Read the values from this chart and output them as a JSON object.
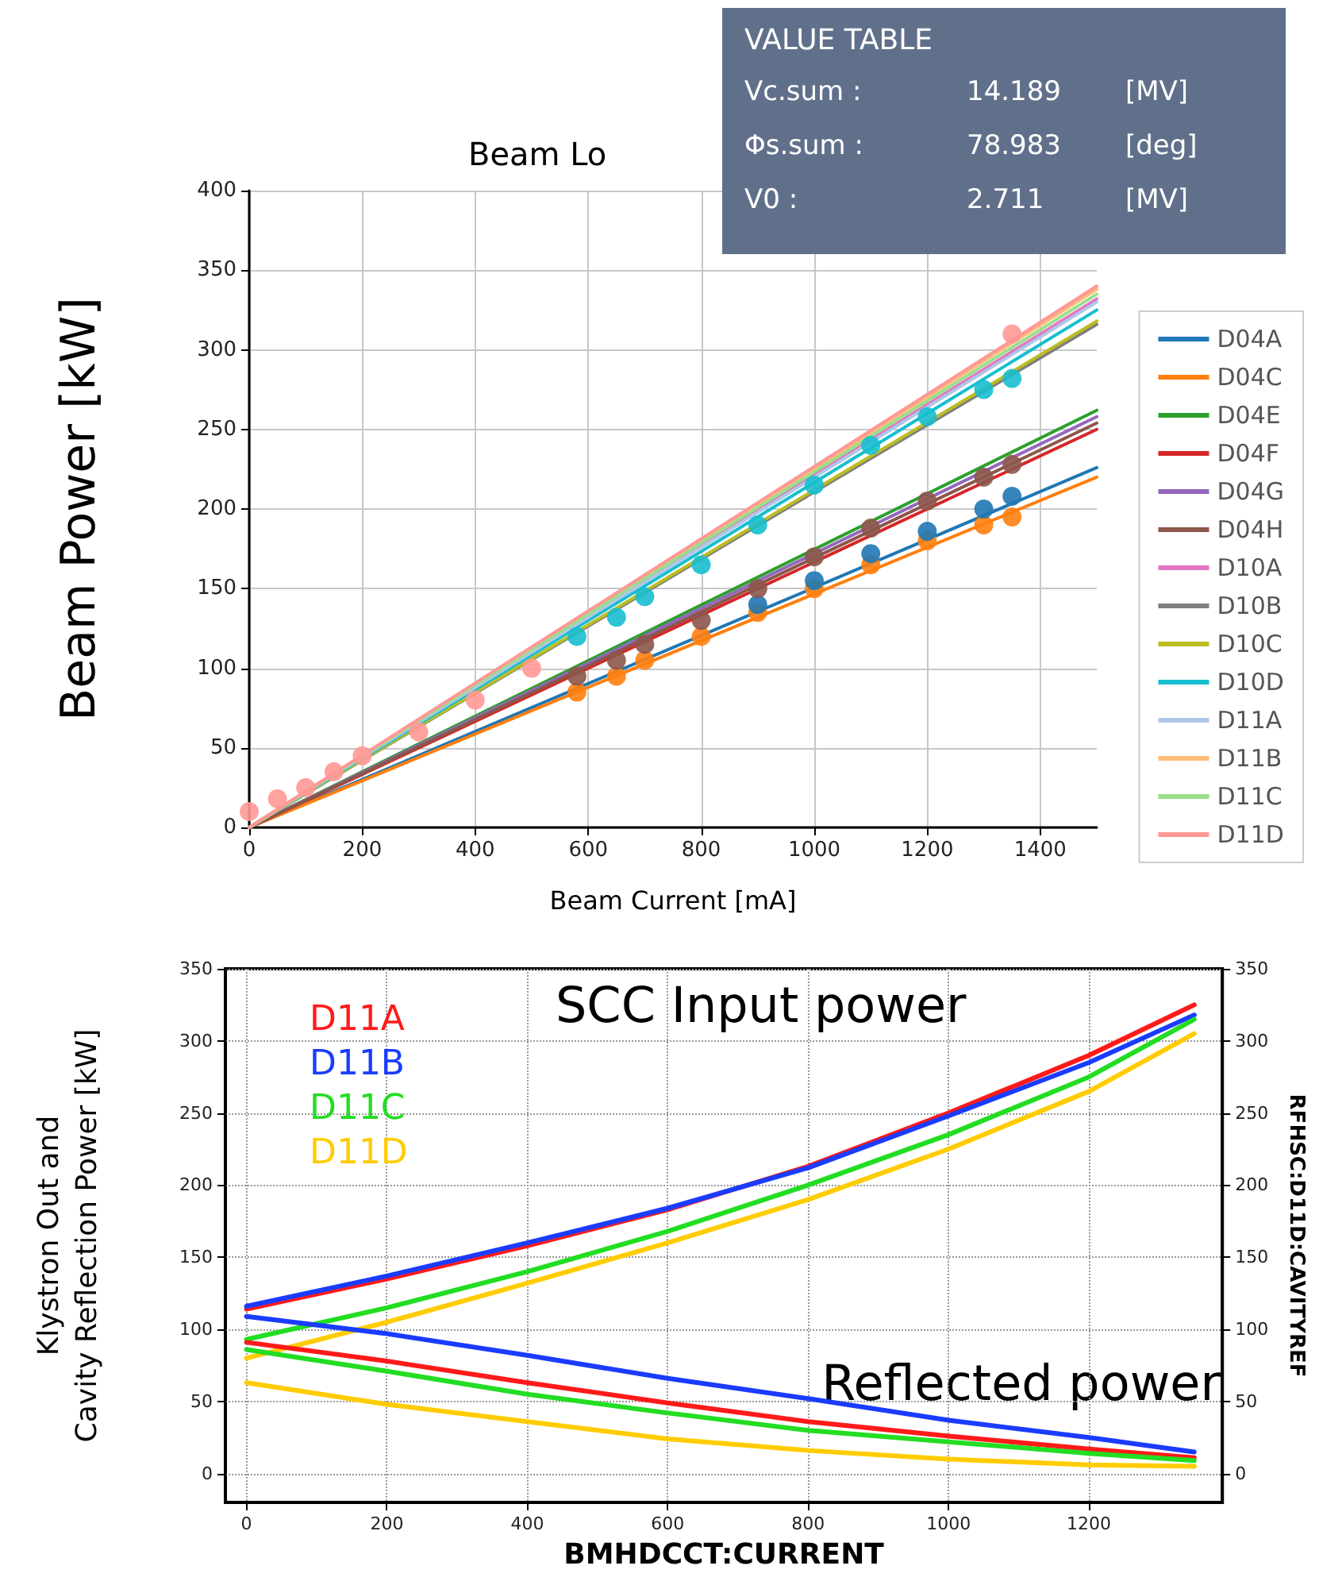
{
  "chart_data": [
    {
      "type": "line",
      "title": "Beam Lo",
      "xlabel": "Beam Current [mA]",
      "ylabel": "Beam Power [kW]",
      "annotations": [
        "VALUE TABLE",
        "Vc.sum :",
        "14.189",
        "[MV]",
        "Φs.sum :",
        "78.983",
        "[deg]",
        "V0 :",
        "2.711",
        "[MV]"
      ],
      "xlim": [
        0,
        1500
      ],
      "xticks": [
        0,
        200,
        400,
        600,
        800,
        1000,
        1200,
        1400
      ],
      "ylim": [
        0,
        400
      ],
      "yticks": [
        0,
        50,
        100,
        150,
        200,
        250,
        300,
        350,
        400
      ],
      "grid": true,
      "legend": "right",
      "series": [
        {
          "type": "scatter",
          "color": "#ff7f0e",
          "x": [
            580,
            650,
            700,
            800,
            900,
            1000,
            1100,
            1200,
            1300,
            1350
          ],
          "values": [
            85,
            95,
            105,
            120,
            135,
            150,
            165,
            180,
            190,
            195
          ]
        },
        {
          "type": "scatter",
          "color": "#1f77b4",
          "x": [
            900,
            1000,
            1100,
            1200,
            1300,
            1350
          ],
          "values": [
            140,
            155,
            172,
            186,
            200,
            208
          ]
        },
        {
          "type": "scatter",
          "color": "#8c564b",
          "x": [
            580,
            650,
            700,
            800,
            900,
            1000,
            1100,
            1200,
            1300,
            1350
          ],
          "values": [
            95,
            105,
            115,
            130,
            150,
            170,
            188,
            205,
            220,
            228
          ]
        },
        {
          "type": "scatter",
          "color": "#17becf",
          "x": [
            580,
            650,
            700,
            800,
            900,
            1000,
            1100,
            1200,
            1300,
            1350
          ],
          "values": [
            120,
            132,
            145,
            165,
            190,
            215,
            240,
            258,
            275,
            282
          ]
        },
        {
          "type": "scatter",
          "color": "#ff9896",
          "x": [
            0,
            50,
            100,
            150,
            200,
            300,
            400,
            500,
            1350
          ],
          "values": [
            10,
            18,
            25,
            35,
            45,
            60,
            80,
            100,
            310
          ]
        },
        {
          "name": "D04A",
          "color": "#1f77b4",
          "x": [
            0,
            1500
          ],
          "values": [
            0,
            226
          ]
        },
        {
          "name": "D04C",
          "color": "#ff7f0e",
          "x": [
            0,
            1500
          ],
          "values": [
            0,
            220
          ]
        },
        {
          "name": "D04E",
          "color": "#2ca02c",
          "x": [
            0,
            1500
          ],
          "values": [
            0,
            262
          ]
        },
        {
          "name": "D04F",
          "color": "#d62728",
          "x": [
            0,
            1500
          ],
          "values": [
            0,
            250
          ]
        },
        {
          "name": "D04G",
          "color": "#9467bd",
          "x": [
            0,
            1500
          ],
          "values": [
            0,
            258
          ]
        },
        {
          "name": "D04H",
          "color": "#8c564b",
          "x": [
            0,
            1500
          ],
          "values": [
            0,
            254
          ]
        },
        {
          "name": "D10A",
          "color": "#e377c2",
          "x": [
            0,
            1500
          ],
          "values": [
            0,
            332
          ]
        },
        {
          "name": "D10B",
          "color": "#7f7f7f",
          "x": [
            0,
            1500
          ],
          "values": [
            0,
            316
          ]
        },
        {
          "name": "D10C",
          "color": "#bcbd22",
          "x": [
            0,
            1500
          ],
          "values": [
            0,
            318
          ]
        },
        {
          "name": "D10D",
          "color": "#17becf",
          "x": [
            0,
            1500
          ],
          "values": [
            0,
            325
          ]
        },
        {
          "name": "D11A",
          "color": "#aec7e8",
          "x": [
            0,
            1500
          ],
          "values": [
            0,
            330
          ]
        },
        {
          "name": "D11B",
          "color": "#ffbb78",
          "x": [
            0,
            1500
          ],
          "values": [
            0,
            338
          ]
        },
        {
          "name": "D11C",
          "color": "#98df8a",
          "x": [
            0,
            1500
          ],
          "values": [
            0,
            335
          ]
        },
        {
          "name": "D11D",
          "color": "#ff9896",
          "x": [
            0,
            1500
          ],
          "values": [
            0,
            340
          ]
        }
      ]
    },
    {
      "type": "line",
      "xlabel": "BMHDCCT:CURRENT",
      "ylabel": "Klystron Out and\nCavity Reflection Power [kW]",
      "y2label": "RFHSC:D11D:CAVITYREF",
      "annotations": [
        "SCC Input power",
        "Reflected power"
      ],
      "x": [
        0,
        200,
        400,
        600,
        800,
        1000,
        1200,
        1350
      ],
      "xlim": [
        -30,
        1390
      ],
      "xticks": [
        0,
        200,
        400,
        600,
        800,
        1000,
        1200
      ],
      "ylim": [
        -20,
        350
      ],
      "yticks": [
        0,
        50,
        100,
        150,
        200,
        250,
        300,
        350
      ],
      "y2lim": [
        -20,
        350
      ],
      "y2ticks": [
        0,
        50,
        100,
        150,
        200,
        250,
        300,
        350
      ],
      "grid": true,
      "legend": "top left",
      "line_style": "solid",
      "series": [
        {
          "name": "D11A",
          "color": "#ff1a1a",
          "values": [
            114,
            135,
            158,
            183,
            213,
            250,
            290,
            325
          ]
        },
        {
          "name": "D11B",
          "color": "#1a3cff",
          "values": [
            116,
            137,
            160,
            184,
            212,
            248,
            285,
            318
          ]
        },
        {
          "name": "D11C",
          "color": "#22dd22",
          "values": [
            93,
            115,
            140,
            168,
            200,
            235,
            275,
            315
          ]
        },
        {
          "name": "D11D",
          "color": "#ffcc00",
          "values": [
            80,
            105,
            132,
            160,
            190,
            225,
            265,
            305
          ]
        },
        {
          "color": "#ff1a1a",
          "values": [
            91,
            78,
            63,
            49,
            36,
            26,
            17,
            11
          ]
        },
        {
          "color": "#1a3cff",
          "values": [
            109,
            97,
            82,
            66,
            52,
            37,
            25,
            15
          ]
        },
        {
          "color": "#22dd22",
          "values": [
            86,
            71,
            55,
            42,
            30,
            22,
            14,
            9
          ]
        },
        {
          "color": "#ffcc00",
          "values": [
            63,
            48,
            36,
            24,
            16,
            10,
            6,
            5
          ]
        }
      ]
    }
  ]
}
